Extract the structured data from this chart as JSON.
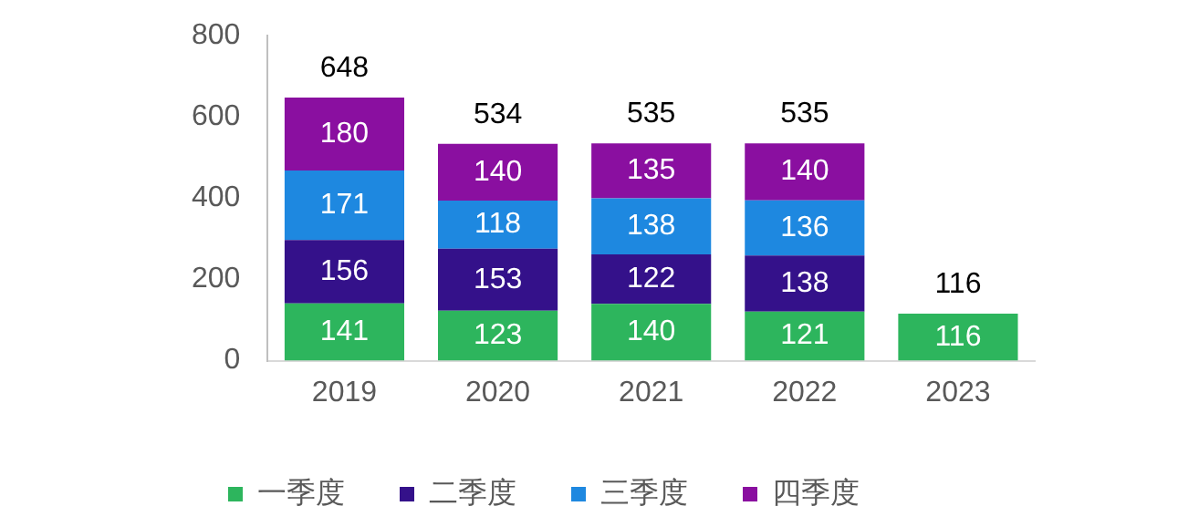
{
  "chart_data": {
    "type": "bar",
    "stacked": true,
    "categories": [
      "2019",
      "2020",
      "2021",
      "2022",
      "2023"
    ],
    "series": [
      {
        "name": "一季度",
        "color": "#2db55d",
        "values": [
          141,
          123,
          140,
          121,
          116
        ]
      },
      {
        "name": "二季度",
        "color": "#34118a",
        "values": [
          156,
          153,
          122,
          138,
          null
        ]
      },
      {
        "name": "三季度",
        "color": "#1e88e0",
        "values": [
          171,
          118,
          138,
          136,
          null
        ]
      },
      {
        "name": "四季度",
        "color": "#8a0fa0",
        "values": [
          180,
          140,
          135,
          140,
          null
        ]
      }
    ],
    "ylim": [
      0,
      800
    ],
    "yticks": [
      0,
      200,
      400,
      600,
      800
    ],
    "grid": false,
    "legend": "bottom",
    "data_labels": true,
    "totals": [
      "648",
      "534",
      "535",
      "535",
      "116"
    ]
  }
}
